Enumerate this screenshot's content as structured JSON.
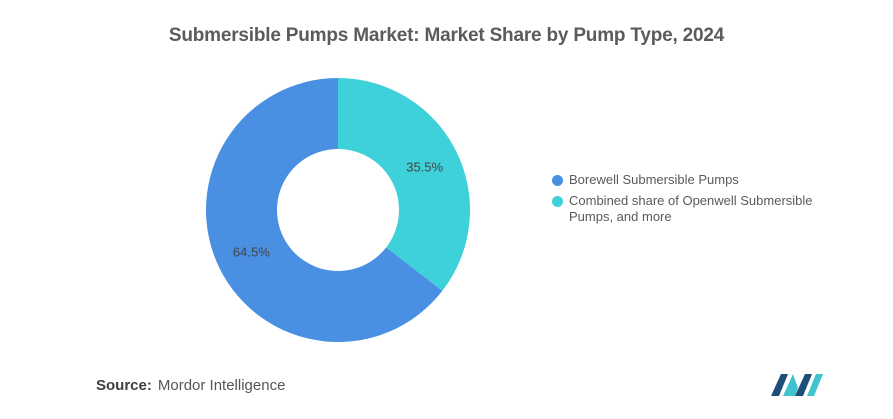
{
  "chart_data": {
    "type": "pie",
    "variant": "donut",
    "title": "Submersible Pumps Market: Market Share by Pump Type, 2024",
    "categories": [
      "Borewell Submersible Pumps",
      "Combined share of Openwell Submersible Pumps, and more"
    ],
    "values": [
      64.5,
      35.5
    ],
    "value_labels": [
      "64.5%",
      "35.5%"
    ],
    "colors": [
      "#4a90e2",
      "#3fd1d9"
    ],
    "legend_position": "right"
  },
  "source": {
    "label": "Source:",
    "text": "Mordor Intelligence"
  },
  "logo": {
    "icon": "mordor-intelligence-logo",
    "colors": [
      "#1f4e79",
      "#3fc4cf"
    ]
  }
}
